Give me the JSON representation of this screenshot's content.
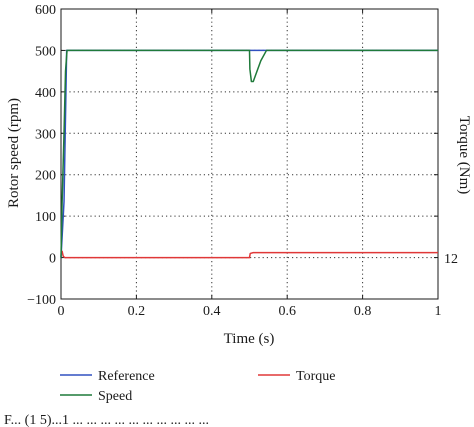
{
  "chart_data": {
    "type": "line",
    "xlabel": "Time (s)",
    "ylabel_left": "Rotor speed (rpm)",
    "ylabel_right": "Torque (Nm)",
    "xlim": [
      0,
      1
    ],
    "ylim": [
      -100,
      600
    ],
    "x_ticks": [
      0,
      0.2,
      0.4,
      0.6,
      0.8,
      1
    ],
    "x_tick_labels": [
      "0",
      "0.2",
      "0.4",
      "0.6",
      "0.8",
      "1"
    ],
    "y_ticks": [
      -100,
      0,
      100,
      200,
      300,
      400,
      500,
      600
    ],
    "y_tick_labels": [
      "−100",
      "0",
      "100",
      "200",
      "300",
      "400",
      "500",
      "600"
    ],
    "right_annotation": {
      "text": "12",
      "value": 12
    },
    "grid": "dotted",
    "legend_position": "bottom",
    "series": [
      {
        "name": "Reference",
        "color": "#3050c0",
        "x": [
          0,
          0.008,
          0.015,
          0.5,
          0.501,
          0.505,
          0.51,
          0.53,
          0.545,
          1.0
        ],
        "y": [
          0,
          135,
          500,
          500,
          500,
          500,
          500,
          500,
          500,
          500
        ]
      },
      {
        "name": "Speed",
        "color": "#1f7a3a",
        "x": [
          0,
          0.003,
          0.008,
          0.012,
          0.016,
          0.5,
          0.501,
          0.505,
          0.51,
          0.53,
          0.545,
          1.0
        ],
        "y": [
          0,
          135,
          300,
          450,
          500,
          500,
          455,
          425,
          425,
          475,
          500,
          500
        ]
      },
      {
        "name": "Torque",
        "color": "#e03838",
        "x": [
          0,
          0.003,
          0.006,
          0.01,
          0.5,
          0.502,
          0.51,
          1.0
        ],
        "y": [
          15,
          15,
          3,
          0,
          0,
          10,
          12,
          12
        ]
      }
    ]
  },
  "caption_fragment": "F... (1 5)...1 ... ... ... ... ... ... ... ... ... ..."
}
